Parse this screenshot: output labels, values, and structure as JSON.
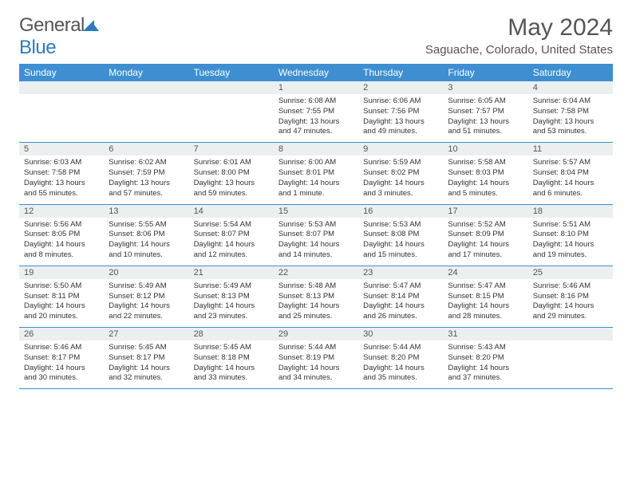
{
  "logo": {
    "text_part1": "General",
    "text_part2": "Blue",
    "icon_color": "#2b7bbf"
  },
  "header": {
    "month_title": "May 2024",
    "location": "Saguache, Colorado, United States"
  },
  "colors": {
    "header_row_bg": "#3d8fd1",
    "header_row_text": "#ffffff",
    "daynum_bg": "#eceff0",
    "text": "#555555",
    "border": "#3d8fd1"
  },
  "daynames": [
    "Sunday",
    "Monday",
    "Tuesday",
    "Wednesday",
    "Thursday",
    "Friday",
    "Saturday"
  ],
  "weeks": [
    [
      {
        "num": "",
        "sunrise": "",
        "sunset": "",
        "daylight": ""
      },
      {
        "num": "",
        "sunrise": "",
        "sunset": "",
        "daylight": ""
      },
      {
        "num": "",
        "sunrise": "",
        "sunset": "",
        "daylight": ""
      },
      {
        "num": "1",
        "sunrise": "Sunrise: 6:08 AM",
        "sunset": "Sunset: 7:55 PM",
        "daylight": "Daylight: 13 hours and 47 minutes."
      },
      {
        "num": "2",
        "sunrise": "Sunrise: 6:06 AM",
        "sunset": "Sunset: 7:56 PM",
        "daylight": "Daylight: 13 hours and 49 minutes."
      },
      {
        "num": "3",
        "sunrise": "Sunrise: 6:05 AM",
        "sunset": "Sunset: 7:57 PM",
        "daylight": "Daylight: 13 hours and 51 minutes."
      },
      {
        "num": "4",
        "sunrise": "Sunrise: 6:04 AM",
        "sunset": "Sunset: 7:58 PM",
        "daylight": "Daylight: 13 hours and 53 minutes."
      }
    ],
    [
      {
        "num": "5",
        "sunrise": "Sunrise: 6:03 AM",
        "sunset": "Sunset: 7:58 PM",
        "daylight": "Daylight: 13 hours and 55 minutes."
      },
      {
        "num": "6",
        "sunrise": "Sunrise: 6:02 AM",
        "sunset": "Sunset: 7:59 PM",
        "daylight": "Daylight: 13 hours and 57 minutes."
      },
      {
        "num": "7",
        "sunrise": "Sunrise: 6:01 AM",
        "sunset": "Sunset: 8:00 PM",
        "daylight": "Daylight: 13 hours and 59 minutes."
      },
      {
        "num": "8",
        "sunrise": "Sunrise: 6:00 AM",
        "sunset": "Sunset: 8:01 PM",
        "daylight": "Daylight: 14 hours and 1 minute."
      },
      {
        "num": "9",
        "sunrise": "Sunrise: 5:59 AM",
        "sunset": "Sunset: 8:02 PM",
        "daylight": "Daylight: 14 hours and 3 minutes."
      },
      {
        "num": "10",
        "sunrise": "Sunrise: 5:58 AM",
        "sunset": "Sunset: 8:03 PM",
        "daylight": "Daylight: 14 hours and 5 minutes."
      },
      {
        "num": "11",
        "sunrise": "Sunrise: 5:57 AM",
        "sunset": "Sunset: 8:04 PM",
        "daylight": "Daylight: 14 hours and 6 minutes."
      }
    ],
    [
      {
        "num": "12",
        "sunrise": "Sunrise: 5:56 AM",
        "sunset": "Sunset: 8:05 PM",
        "daylight": "Daylight: 14 hours and 8 minutes."
      },
      {
        "num": "13",
        "sunrise": "Sunrise: 5:55 AM",
        "sunset": "Sunset: 8:06 PM",
        "daylight": "Daylight: 14 hours and 10 minutes."
      },
      {
        "num": "14",
        "sunrise": "Sunrise: 5:54 AM",
        "sunset": "Sunset: 8:07 PM",
        "daylight": "Daylight: 14 hours and 12 minutes."
      },
      {
        "num": "15",
        "sunrise": "Sunrise: 5:53 AM",
        "sunset": "Sunset: 8:07 PM",
        "daylight": "Daylight: 14 hours and 14 minutes."
      },
      {
        "num": "16",
        "sunrise": "Sunrise: 5:53 AM",
        "sunset": "Sunset: 8:08 PM",
        "daylight": "Daylight: 14 hours and 15 minutes."
      },
      {
        "num": "17",
        "sunrise": "Sunrise: 5:52 AM",
        "sunset": "Sunset: 8:09 PM",
        "daylight": "Daylight: 14 hours and 17 minutes."
      },
      {
        "num": "18",
        "sunrise": "Sunrise: 5:51 AM",
        "sunset": "Sunset: 8:10 PM",
        "daylight": "Daylight: 14 hours and 19 minutes."
      }
    ],
    [
      {
        "num": "19",
        "sunrise": "Sunrise: 5:50 AM",
        "sunset": "Sunset: 8:11 PM",
        "daylight": "Daylight: 14 hours and 20 minutes."
      },
      {
        "num": "20",
        "sunrise": "Sunrise: 5:49 AM",
        "sunset": "Sunset: 8:12 PM",
        "daylight": "Daylight: 14 hours and 22 minutes."
      },
      {
        "num": "21",
        "sunrise": "Sunrise: 5:49 AM",
        "sunset": "Sunset: 8:13 PM",
        "daylight": "Daylight: 14 hours and 23 minutes."
      },
      {
        "num": "22",
        "sunrise": "Sunrise: 5:48 AM",
        "sunset": "Sunset: 8:13 PM",
        "daylight": "Daylight: 14 hours and 25 minutes."
      },
      {
        "num": "23",
        "sunrise": "Sunrise: 5:47 AM",
        "sunset": "Sunset: 8:14 PM",
        "daylight": "Daylight: 14 hours and 26 minutes."
      },
      {
        "num": "24",
        "sunrise": "Sunrise: 5:47 AM",
        "sunset": "Sunset: 8:15 PM",
        "daylight": "Daylight: 14 hours and 28 minutes."
      },
      {
        "num": "25",
        "sunrise": "Sunrise: 5:46 AM",
        "sunset": "Sunset: 8:16 PM",
        "daylight": "Daylight: 14 hours and 29 minutes."
      }
    ],
    [
      {
        "num": "26",
        "sunrise": "Sunrise: 5:46 AM",
        "sunset": "Sunset: 8:17 PM",
        "daylight": "Daylight: 14 hours and 30 minutes."
      },
      {
        "num": "27",
        "sunrise": "Sunrise: 5:45 AM",
        "sunset": "Sunset: 8:17 PM",
        "daylight": "Daylight: 14 hours and 32 minutes."
      },
      {
        "num": "28",
        "sunrise": "Sunrise: 5:45 AM",
        "sunset": "Sunset: 8:18 PM",
        "daylight": "Daylight: 14 hours and 33 minutes."
      },
      {
        "num": "29",
        "sunrise": "Sunrise: 5:44 AM",
        "sunset": "Sunset: 8:19 PM",
        "daylight": "Daylight: 14 hours and 34 minutes."
      },
      {
        "num": "30",
        "sunrise": "Sunrise: 5:44 AM",
        "sunset": "Sunset: 8:20 PM",
        "daylight": "Daylight: 14 hours and 35 minutes."
      },
      {
        "num": "31",
        "sunrise": "Sunrise: 5:43 AM",
        "sunset": "Sunset: 8:20 PM",
        "daylight": "Daylight: 14 hours and 37 minutes."
      },
      {
        "num": "",
        "sunrise": "",
        "sunset": "",
        "daylight": ""
      }
    ]
  ]
}
